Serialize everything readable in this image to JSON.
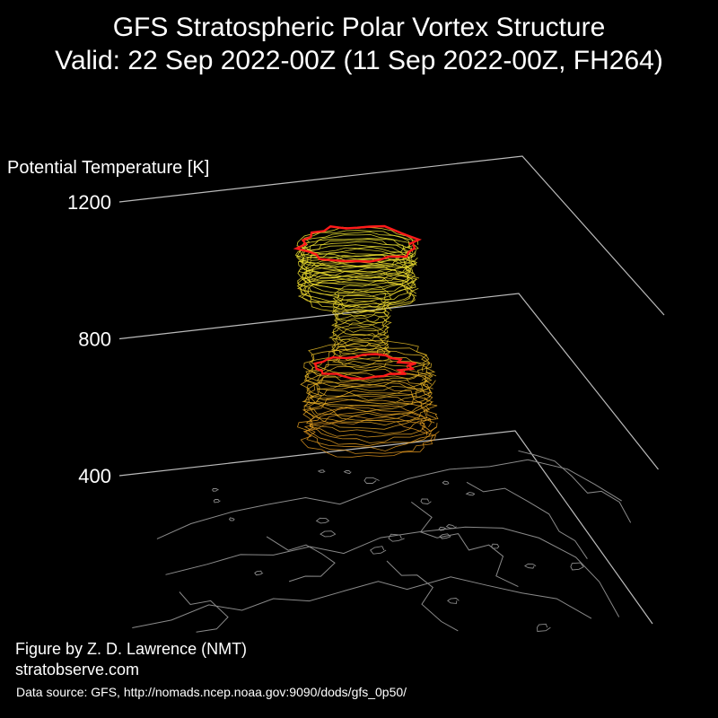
{
  "title": {
    "line1": "GFS Stratospheric Polar Vortex Structure",
    "line2": "Valid: 22 Sep 2022-00Z  (11 Sep 2022-00Z, FH264)"
  },
  "credits": {
    "author": "Figure by Z. D. Lawrence (NMT)",
    "site": "stratobserve.com",
    "source": "Data source: GFS, http://nomads.ncep.noaa.gov:9090/dods/gfs_0p50/"
  },
  "chart_data": {
    "type": "3d-isosurface",
    "zlabel": "Potential Temperature [K]",
    "zticks": [
      400,
      800,
      1200
    ],
    "zlim": [
      400,
      1200
    ],
    "colors": {
      "background": "#000000",
      "axis_lines": "#bbbbbb",
      "coastlines": "#8a8a8a",
      "vortex_upper": "#e8e030",
      "vortex_lower": "#e89a20",
      "edge_highlight": "#ff1a1a"
    }
  }
}
